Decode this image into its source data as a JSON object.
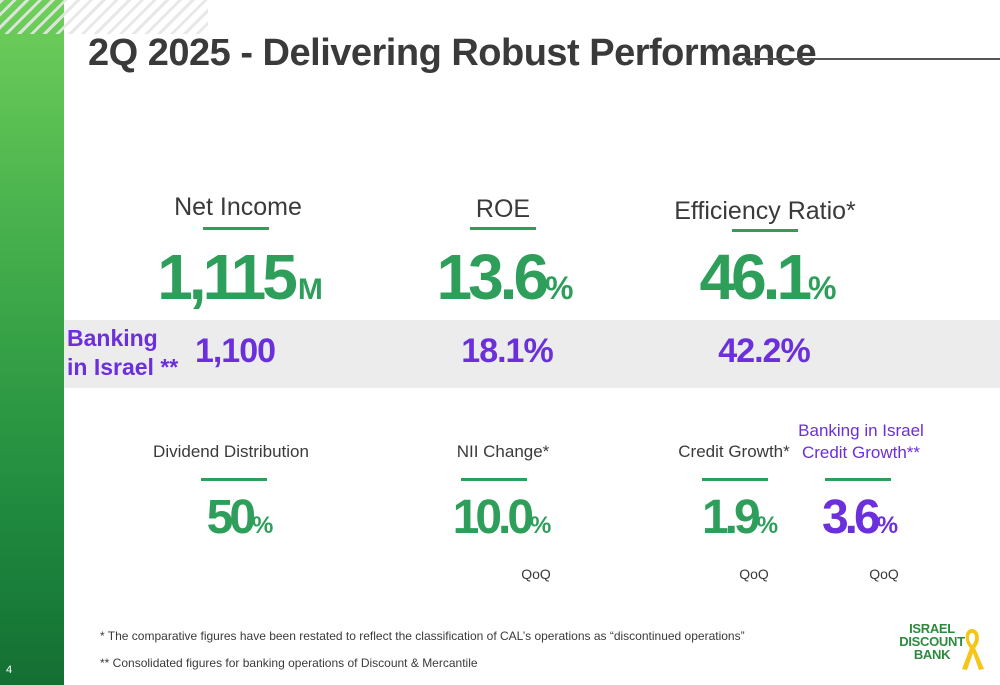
{
  "page_number": "4",
  "title": "2Q 2025 - Delivering Robust Performance",
  "top_metrics": [
    {
      "label": "Net Income",
      "value": "1,115",
      "suffix": "M"
    },
    {
      "label": "ROE",
      "value": "13.6",
      "suffix": "%"
    },
    {
      "label": "Efficiency Ratio*",
      "value": "46.1",
      "suffix": "%"
    }
  ],
  "banking_israel": {
    "label_line1": "Banking",
    "label_line2": "in Israel **",
    "values": [
      "1,100",
      "18.1%",
      "42.2%"
    ]
  },
  "bottom_metrics": [
    {
      "label": "Dividend Distribution",
      "value": "50",
      "suffix": "%",
      "note": ""
    },
    {
      "label": "NII Change*",
      "value": "10.0",
      "suffix": "%",
      "note": "QoQ"
    },
    {
      "label": "Credit Growth*",
      "value": "1.9",
      "suffix": "%",
      "note": "QoQ"
    },
    {
      "label_line1": "Banking in Israel",
      "label_line2": "Credit Growth**",
      "value": "3.6",
      "suffix": "%",
      "note": "QoQ"
    }
  ],
  "footnotes": [
    "* The comparative figures have been restated to reflect the classification of CAL’s operations as “discontinued operations”",
    "** Consolidated figures for banking operations of Discount & Mercantile"
  ],
  "logo": {
    "line1": "ISRAEL",
    "line2": "DISCOUNT",
    "line3": "BANK"
  },
  "colors": {
    "green": "#2e9e5b",
    "purple": "#6b2fdc",
    "ribbon": "#f5c518"
  }
}
